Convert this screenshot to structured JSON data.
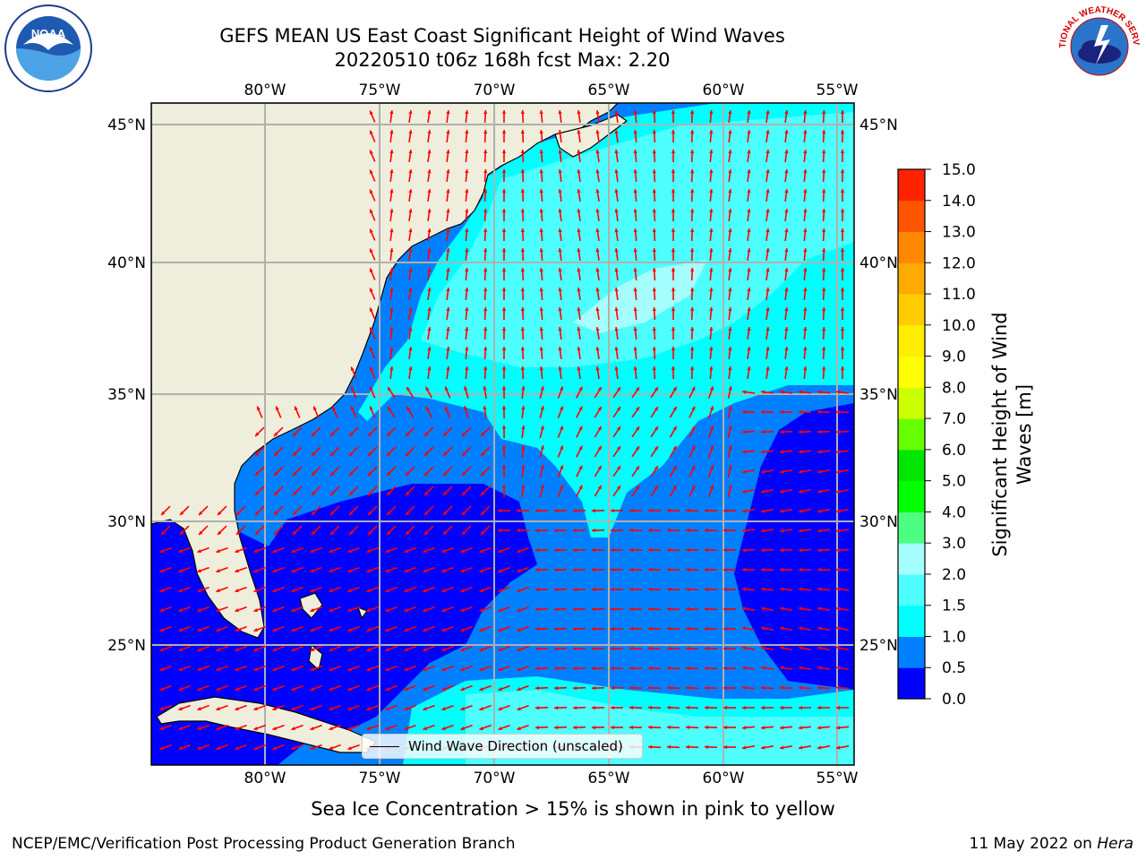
{
  "title": {
    "line1": "GEFS MEAN US East Coast Significant Height of Wind Waves",
    "line2": "20220510 t06z 168h fcst   Max: 2.20"
  },
  "map": {
    "lon_labels_top": [
      "80°W",
      "75°W",
      "70°W",
      "65°W",
      "60°W",
      "55°W"
    ],
    "lon_labels_bottom": [
      "80°W",
      "75°W",
      "70°W",
      "65°W",
      "60°W",
      "55°W"
    ],
    "lat_labels_left": [
      "45°N",
      "40°N",
      "35°N",
      "30°N",
      "25°N"
    ],
    "lat_labels_right": [
      "45°N",
      "40°N",
      "35°N",
      "30°N",
      "25°N"
    ],
    "extent": {
      "lon": [
        -85,
        -54.3
      ],
      "lat": [
        20.5,
        46
      ]
    },
    "land_color": "#efeedc",
    "arrow_color": "#ff0000"
  },
  "legend": {
    "label": "Wind Wave Direction (unscaled)"
  },
  "colorbar": {
    "label_line1": "Significant Height of Wind",
    "label_line2": "Waves [m]",
    "ticks": [
      "0.0",
      "0.5",
      "1.0",
      "1.5",
      "2.0",
      "3.0",
      "4.0",
      "5.0",
      "6.0",
      "7.0",
      "8.0",
      "9.0",
      "10.0",
      "11.0",
      "12.0",
      "13.0",
      "14.0",
      "15.0"
    ],
    "colors": [
      "#0000ff",
      "#0080ff",
      "#00ffff",
      "#4dffff",
      "#a6ffff",
      "#4dff80",
      "#00ff00",
      "#00e600",
      "#66ff00",
      "#ccff00",
      "#ffff00",
      "#ffee00",
      "#ffcc00",
      "#ffaa00",
      "#ff8800",
      "#ff5500",
      "#ff2200",
      "#ff0000"
    ]
  },
  "footer": {
    "sea_ice_note": "Sea Ice Concentration > 15% is shown in pink to yellow",
    "producer": "NCEP/EMC/Verification Post Processing Product Generation Branch",
    "date_prefix": "11 May 2022 on ",
    "machine": "Hera"
  },
  "logos": {
    "noaa_label": "NOAA",
    "nws_label": "NATIONAL WEATHER SERVICE"
  }
}
